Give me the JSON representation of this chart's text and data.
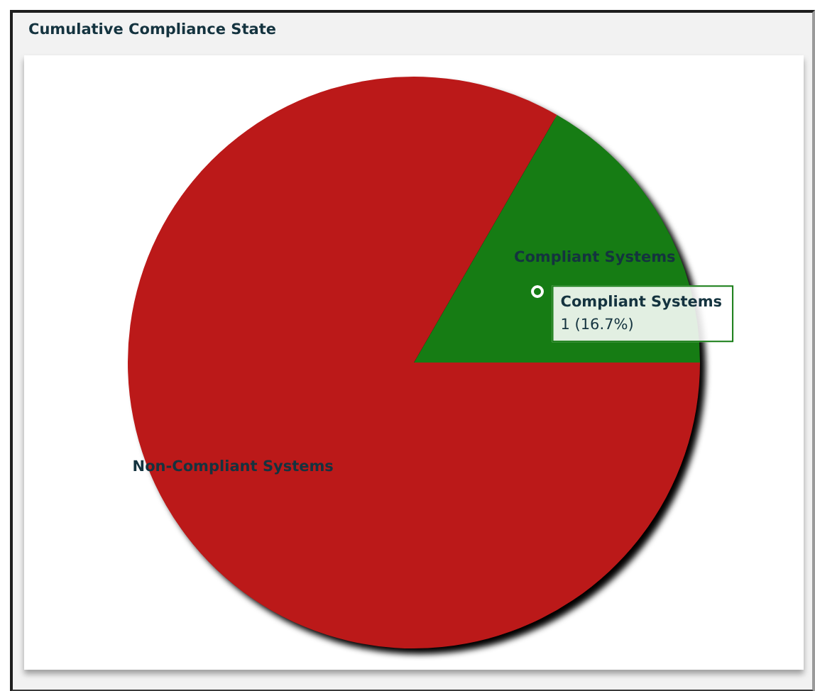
{
  "chart_data": {
    "type": "pie",
    "title": "Cumulative Compliance State",
    "categories": [
      "Compliant Systems",
      "Non-Compliant Systems"
    ],
    "values": [
      1,
      5
    ],
    "colors": [
      "#167c14",
      "#bb1919"
    ],
    "value_labels": [
      "1 (16.7%)",
      null
    ]
  }
}
